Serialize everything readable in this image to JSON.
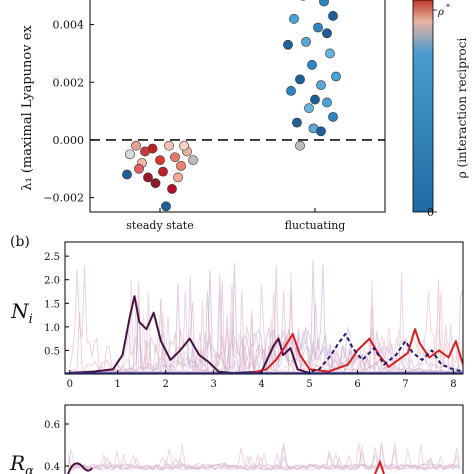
{
  "chart_data": [
    {
      "panel": "a",
      "type": "scatter",
      "ylabel": "λ₁ (maximal Lyapunov ex",
      "categories": [
        "steady state",
        "fluctuating"
      ],
      "yticks": [
        -0.002,
        0.0,
        0.002,
        0.004
      ],
      "ytick_labels": [
        "−0.002",
        "0.000",
        "0.002",
        "0.004"
      ],
      "ylim": [
        -0.0025,
        0.0052
      ],
      "reference_line": 0.0,
      "colorbar": {
        "label": "ρ (interaction reciproci",
        "marker_label": "ρ*",
        "tick_labels": [
          "0"
        ],
        "colors": [
          "#c0392b",
          "#e8b4a0",
          "#2e86c1",
          "#1f5f99"
        ]
      },
      "points": [
        {
          "cat": 0,
          "x": -0.05,
          "y": -0.0003,
          "c": "#c0202a"
        },
        {
          "cat": 0,
          "x": 0.1,
          "y": -0.0006,
          "c": "#e37a6e"
        },
        {
          "cat": 0,
          "x": -0.12,
          "y": -0.0008,
          "c": "#f2b7a8"
        },
        {
          "cat": 0,
          "x": 0.02,
          "y": -0.0011,
          "c": "#c0202a"
        },
        {
          "cat": 0,
          "x": 0.18,
          "y": -0.0004,
          "c": "#e8b4a0"
        },
        {
          "cat": 0,
          "x": -0.2,
          "y": -0.0005,
          "c": "#d9d9d9"
        },
        {
          "cat": 0,
          "x": 0.06,
          "y": -0.0002,
          "c": "#f4c2b4"
        },
        {
          "cat": 0,
          "x": -0.08,
          "y": -0.0013,
          "c": "#a01428"
        },
        {
          "cat": 0,
          "x": 0.14,
          "y": -0.0009,
          "c": "#f08070"
        },
        {
          "cat": 0,
          "x": -0.16,
          "y": -0.0002,
          "c": "#e8a090"
        },
        {
          "cat": 0,
          "x": 0.0,
          "y": -0.0007,
          "c": "#d83a30"
        },
        {
          "cat": 0,
          "x": 0.22,
          "y": -0.0007,
          "c": "#bcbcbc"
        },
        {
          "cat": 0,
          "x": -0.03,
          "y": -0.0015,
          "c": "#8b1a2a"
        },
        {
          "cat": 0,
          "x": 0.08,
          "y": -0.0017,
          "c": "#b5102a"
        },
        {
          "cat": 0,
          "x": -0.22,
          "y": -0.0012,
          "c": "#1f5f99"
        },
        {
          "cat": 0,
          "x": 0.04,
          "y": -0.0023,
          "c": "#1f5f99"
        },
        {
          "cat": 0,
          "x": -0.1,
          "y": -0.0004,
          "c": "#c93a40"
        },
        {
          "cat": 0,
          "x": 0.12,
          "y": -0.0013,
          "c": "#f0a898"
        },
        {
          "cat": 0,
          "x": -0.14,
          "y": -0.001,
          "c": "#e06060"
        },
        {
          "cat": 0,
          "x": 0.16,
          "y": -0.0002,
          "c": "#f6d0c4"
        },
        {
          "cat": 1,
          "x": -0.08,
          "y": 0.005,
          "c": "#1f5f99"
        },
        {
          "cat": 1,
          "x": 0.06,
          "y": 0.0048,
          "c": "#2e86c1"
        },
        {
          "cat": 1,
          "x": 0.12,
          "y": 0.0043,
          "c": "#1f5f99"
        },
        {
          "cat": 1,
          "x": -0.14,
          "y": 0.0042,
          "c": "#4aa3d8"
        },
        {
          "cat": 1,
          "x": 0.02,
          "y": 0.0039,
          "c": "#2e86c1"
        },
        {
          "cat": 1,
          "x": 0.08,
          "y": 0.0037,
          "c": "#1f5f99"
        },
        {
          "cat": 1,
          "x": -0.06,
          "y": 0.0034,
          "c": "#5aa8d8"
        },
        {
          "cat": 1,
          "x": -0.18,
          "y": 0.0033,
          "c": "#1f5f99"
        },
        {
          "cat": 1,
          "x": 0.1,
          "y": 0.003,
          "c": "#6ab3dd"
        },
        {
          "cat": 1,
          "x": -0.02,
          "y": 0.0026,
          "c": "#2e86c1"
        },
        {
          "cat": 1,
          "x": 0.14,
          "y": 0.0022,
          "c": "#4aa3d8"
        },
        {
          "cat": 1,
          "x": -0.1,
          "y": 0.0021,
          "c": "#1f5f99"
        },
        {
          "cat": 1,
          "x": 0.04,
          "y": 0.0019,
          "c": "#5aa8d8"
        },
        {
          "cat": 1,
          "x": -0.16,
          "y": 0.0017,
          "c": "#2e86c1"
        },
        {
          "cat": 1,
          "x": 0.0,
          "y": 0.0014,
          "c": "#1f5f99"
        },
        {
          "cat": 1,
          "x": 0.08,
          "y": 0.0013,
          "c": "#4aa3d8"
        },
        {
          "cat": 1,
          "x": -0.04,
          "y": 0.0011,
          "c": "#6ab3dd"
        },
        {
          "cat": 1,
          "x": 0.12,
          "y": 0.0008,
          "c": "#2e86c1"
        },
        {
          "cat": 1,
          "x": -0.12,
          "y": 0.0006,
          "c": "#1f5f99"
        },
        {
          "cat": 1,
          "x": -0.01,
          "y": 0.0004,
          "c": "#5aa8d8"
        },
        {
          "cat": 1,
          "x": 0.04,
          "y": 0.0003,
          "c": "#1f5f99"
        },
        {
          "cat": 1,
          "x": -0.1,
          "y": -0.0002,
          "c": "#bcbcbc"
        }
      ]
    },
    {
      "panel": "b",
      "type": "line",
      "panel_label": "(b)",
      "ylabel": "N_i",
      "xlim": [
        -0.1,
        8.2
      ],
      "ylim": [
        0,
        2.8
      ],
      "xticks": [
        0,
        1,
        2,
        3,
        4,
        5,
        6,
        7,
        8
      ],
      "yticks": [
        0.5,
        1.0,
        1.5,
        2.0,
        2.5
      ],
      "background_traces": 8,
      "series": [
        {
          "role": "highlight-dark",
          "color": "#4a1040",
          "points": [
            [
              0,
              0.02
            ],
            [
              0.5,
              0.05
            ],
            [
              0.9,
              0.1
            ],
            [
              1.1,
              0.4
            ],
            [
              1.25,
              1.2
            ],
            [
              1.35,
              1.65
            ],
            [
              1.45,
              1.1
            ],
            [
              1.6,
              0.95
            ],
            [
              1.75,
              1.3
            ],
            [
              1.9,
              0.7
            ],
            [
              2.1,
              0.3
            ],
            [
              2.3,
              0.5
            ],
            [
              2.5,
              0.75
            ],
            [
              2.7,
              0.4
            ],
            [
              2.9,
              0.25
            ],
            [
              3.1,
              0.05
            ],
            [
              3.4,
              0.02
            ],
            [
              4.0,
              0.05
            ],
            [
              4.25,
              0.6
            ],
            [
              4.35,
              0.75
            ],
            [
              4.45,
              0.4
            ],
            [
              4.6,
              0.55
            ],
            [
              4.75,
              0.1
            ],
            [
              5.0,
              0.02
            ]
          ]
        },
        {
          "role": "highlight-red",
          "color": "#d42020",
          "points": [
            [
              3.8,
              0.02
            ],
            [
              4.1,
              0.1
            ],
            [
              4.3,
              0.3
            ],
            [
              4.5,
              0.6
            ],
            [
              4.65,
              0.85
            ],
            [
              4.8,
              0.4
            ],
            [
              5.0,
              0.1
            ],
            [
              5.4,
              0.05
            ],
            [
              5.8,
              0.2
            ],
            [
              6.0,
              0.5
            ],
            [
              6.25,
              0.75
            ],
            [
              6.45,
              0.4
            ],
            [
              6.65,
              0.15
            ],
            [
              6.85,
              0.3
            ],
            [
              7.05,
              0.45
            ],
            [
              7.2,
              0.95
            ],
            [
              7.3,
              0.65
            ],
            [
              7.5,
              0.35
            ],
            [
              7.7,
              0.5
            ],
            [
              7.9,
              0.35
            ],
            [
              8.05,
              0.7
            ],
            [
              8.2,
              0.2
            ]
          ]
        },
        {
          "role": "highlight-navy-dashed",
          "color": "#1c1c6c",
          "points": [
            [
              4.9,
              0.02
            ],
            [
              5.2,
              0.1
            ],
            [
              5.45,
              0.4
            ],
            [
              5.6,
              0.65
            ],
            [
              5.75,
              0.85
            ],
            [
              5.9,
              0.55
            ],
            [
              6.1,
              0.3
            ],
            [
              6.35,
              0.55
            ],
            [
              6.55,
              0.2
            ],
            [
              6.8,
              0.4
            ],
            [
              7.0,
              0.7
            ],
            [
              7.15,
              0.45
            ],
            [
              7.35,
              0.3
            ],
            [
              7.55,
              0.5
            ],
            [
              7.75,
              0.2
            ],
            [
              8.0,
              0.1
            ],
            [
              8.2,
              0.05
            ]
          ]
        }
      ]
    },
    {
      "panel": "c",
      "type": "line",
      "ylabel": "R_α",
      "yticks": [
        0.4,
        0.6
      ],
      "ytick_labels": [
        "0.4",
        "0.6"
      ]
    }
  ]
}
